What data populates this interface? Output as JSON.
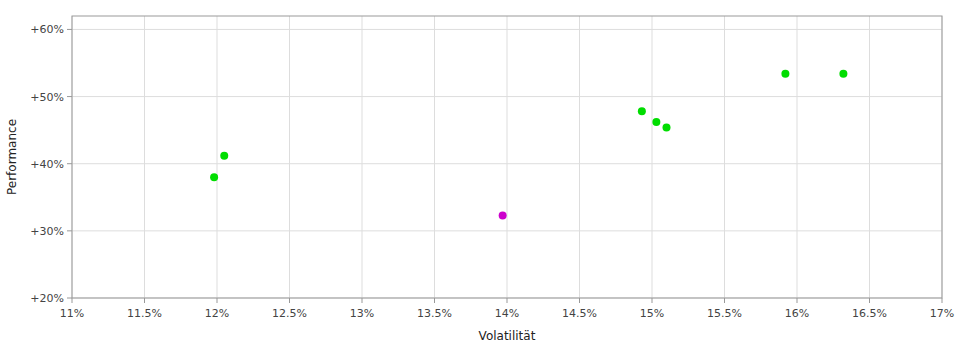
{
  "chart_data": {
    "type": "scatter",
    "xlabel": "Volatilität",
    "ylabel": "Performance",
    "xlim": [
      0.11,
      0.17
    ],
    "ylim": [
      0.2,
      0.62
    ],
    "xticks": [
      {
        "value": 0.11,
        "label": "11%"
      },
      {
        "value": 0.115,
        "label": "11.5%"
      },
      {
        "value": 0.12,
        "label": "12%"
      },
      {
        "value": 0.125,
        "label": "12.5%"
      },
      {
        "value": 0.13,
        "label": "13%"
      },
      {
        "value": 0.135,
        "label": "13.5%"
      },
      {
        "value": 0.14,
        "label": "14%"
      },
      {
        "value": 0.145,
        "label": "14.5%"
      },
      {
        "value": 0.15,
        "label": "15%"
      },
      {
        "value": 0.155,
        "label": "15.5%"
      },
      {
        "value": 0.16,
        "label": "16%"
      },
      {
        "value": 0.165,
        "label": "16.5%"
      },
      {
        "value": 0.17,
        "label": "17%"
      }
    ],
    "yticks": [
      {
        "value": 0.2,
        "label": "+20%"
      },
      {
        "value": 0.3,
        "label": "+30%"
      },
      {
        "value": 0.4,
        "label": "+40%"
      },
      {
        "value": 0.5,
        "label": "+50%"
      },
      {
        "value": 0.6,
        "label": "+60%"
      }
    ],
    "x": [
      0.1205,
      0.1198,
      0.1397,
      0.1493,
      0.1503,
      0.151,
      0.1592,
      0.1632
    ],
    "values": [
      0.412,
      0.38,
      0.323,
      0.478,
      0.462,
      0.454,
      0.534,
      0.534
    ],
    "colors": [
      "#00dd00",
      "#00dd00",
      "#cc00cc",
      "#00dd00",
      "#00dd00",
      "#00dd00",
      "#00dd00",
      "#00dd00"
    ],
    "grid": true
  }
}
